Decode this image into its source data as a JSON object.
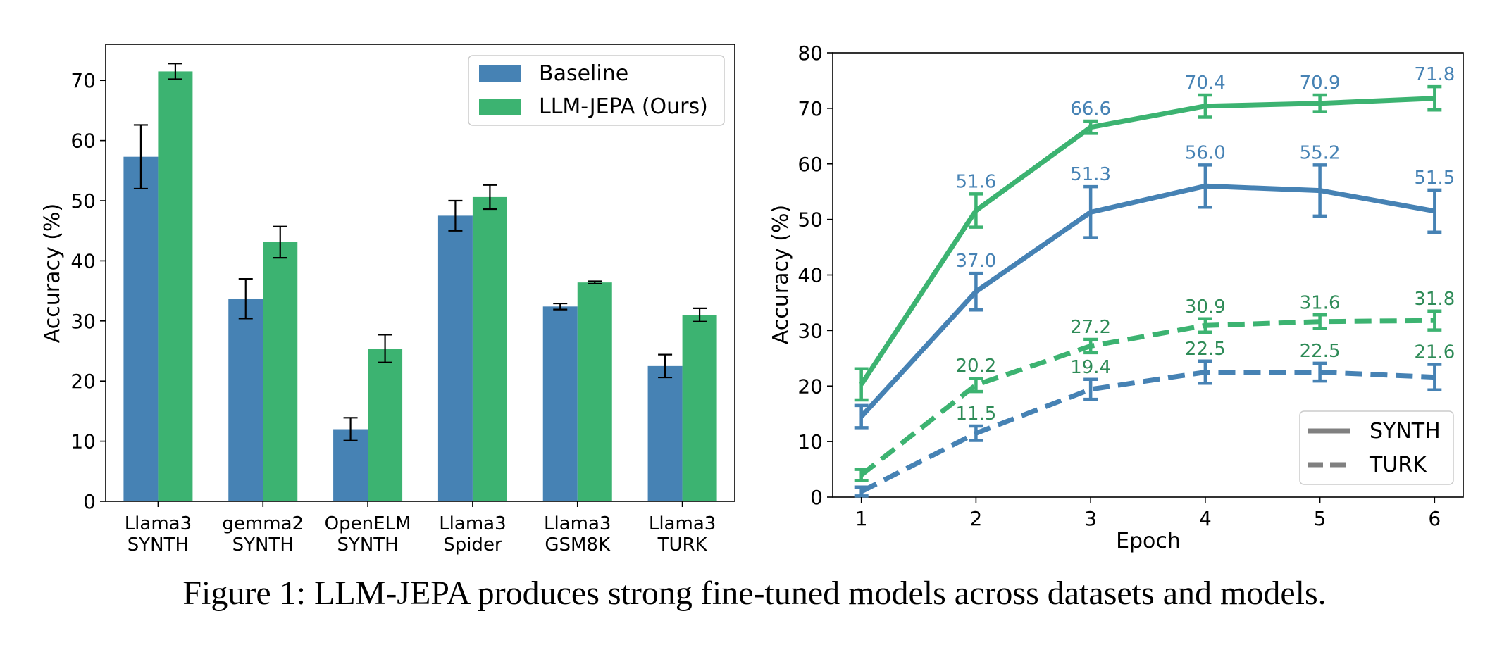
{
  "caption": "Figure 1: LLM-JEPA produces strong fine-tuned models across datasets and models.",
  "chart_data": [
    {
      "type": "bar",
      "title": "",
      "xlabel": "",
      "ylabel": "Accuracy (%)",
      "ylim": [
        0,
        76
      ],
      "yticks": [
        0,
        10,
        20,
        30,
        40,
        50,
        60,
        70
      ],
      "grid": false,
      "legend_position": "top-right",
      "categories": [
        [
          "Llama3",
          "SYNTH"
        ],
        [
          "gemma2",
          "SYNTH"
        ],
        [
          "OpenELM",
          "SYNTH"
        ],
        [
          "Llama3",
          "Spider"
        ],
        [
          "Llama3",
          "GSM8K"
        ],
        [
          "Llama3",
          "TURK"
        ]
      ],
      "series": [
        {
          "name": "Baseline",
          "color": "#4682b4",
          "values": [
            57.3,
            33.7,
            12.0,
            47.5,
            32.4,
            22.5
          ],
          "errors": [
            5.3,
            3.3,
            1.9,
            2.5,
            0.5,
            1.9
          ]
        },
        {
          "name": "LLM-JEPA (Ours)",
          "color": "#3cb371",
          "values": [
            71.5,
            43.1,
            25.4,
            50.6,
            36.4,
            31.0
          ],
          "errors": [
            1.3,
            2.6,
            2.3,
            2.0,
            0.2,
            1.1
          ]
        }
      ]
    },
    {
      "type": "line",
      "title": "",
      "xlabel": "Epoch",
      "ylabel": "Accuracy (%)",
      "x": [
        1,
        2,
        3,
        4,
        5,
        6
      ],
      "xlim": [
        0.75,
        6.25
      ],
      "ylim": [
        0,
        80
      ],
      "yticks": [
        0,
        10,
        20,
        30,
        40,
        50,
        60,
        70,
        80
      ],
      "grid": false,
      "legend_position": "lower-right",
      "legend": [
        {
          "name": "SYNTH",
          "style": "solid"
        },
        {
          "name": "TURK",
          "style": "dashed"
        }
      ],
      "series": [
        {
          "dataset": "SYNTH",
          "model": "LLM-JEPA",
          "color": "#3cb371",
          "style": "solid",
          "values": [
            20.3,
            51.6,
            66.6,
            70.4,
            70.9,
            71.8
          ],
          "errors": [
            2.8,
            3.0,
            1.1,
            2.0,
            1.5,
            2.1
          ],
          "labels": [
            "",
            "51.6",
            "66.6",
            "70.4",
            "70.9",
            "71.8"
          ],
          "label_color": "#4682b4"
        },
        {
          "dataset": "SYNTH",
          "model": "Baseline",
          "color": "#4682b4",
          "style": "solid",
          "values": [
            14.5,
            37.0,
            51.3,
            56.0,
            55.2,
            51.5
          ],
          "errors": [
            2.0,
            3.3,
            4.6,
            3.8,
            4.6,
            3.8
          ],
          "labels": [
            "",
            "37.0",
            "51.3",
            "56.0",
            "55.2",
            "51.5"
          ],
          "label_color": "#4682b4"
        },
        {
          "dataset": "TURK",
          "model": "LLM-JEPA",
          "color": "#3cb371",
          "style": "dashed",
          "values": [
            4.0,
            20.2,
            27.2,
            30.9,
            31.6,
            31.8
          ],
          "errors": [
            1.0,
            1.2,
            1.2,
            1.2,
            1.2,
            1.7
          ],
          "labels": [
            "",
            "20.2",
            "27.2",
            "30.9",
            "31.6",
            "31.8"
          ],
          "label_color": "#2e8b57"
        },
        {
          "dataset": "TURK",
          "model": "Baseline",
          "color": "#4682b4",
          "style": "dashed",
          "values": [
            1.0,
            11.5,
            19.4,
            22.5,
            22.5,
            21.6
          ],
          "errors": [
            0.8,
            1.3,
            1.8,
            2.0,
            1.6,
            2.3
          ],
          "labels": [
            "",
            "11.5",
            "19.4",
            "22.5",
            "22.5",
            "21.6"
          ],
          "label_color": "#2e8b57"
        }
      ]
    }
  ]
}
